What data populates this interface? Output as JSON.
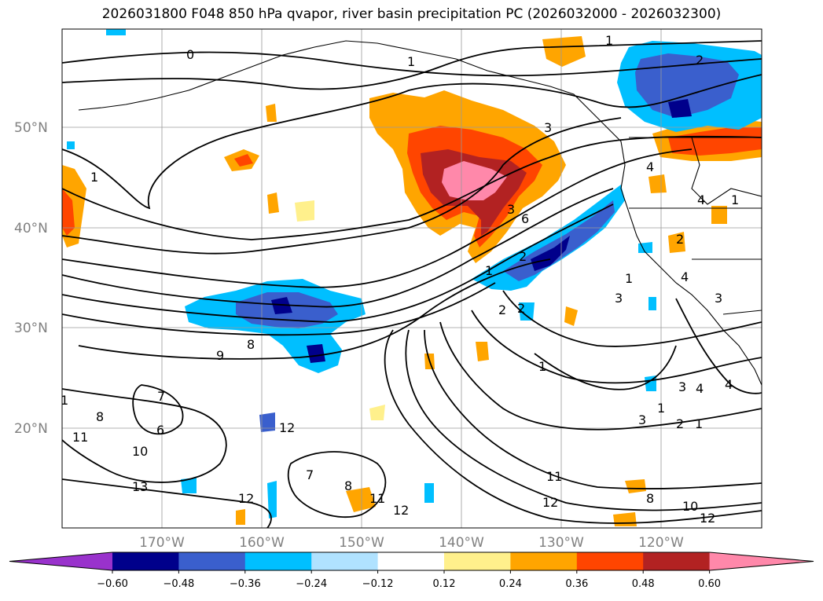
{
  "title": "2026031800 F048 850 hPa qvapor, river basin precipitation PC (2026032000 - 2026032300)",
  "latitude_labels": [
    "50°N",
    "40°N",
    "30°N",
    "20°N"
  ],
  "longitude_labels": [
    "170°W",
    "160°W",
    "150°W",
    "140°W",
    "130°W",
    "120°W"
  ],
  "colorbar": {
    "colors": [
      "#9932cc",
      "#00008b",
      "#3a5fcd",
      "#00bfff",
      "#b0e2ff",
      "#ffffff",
      "#fff08c",
      "#ffa500",
      "#ff4500",
      "#b22222",
      "#ff88aa"
    ],
    "tick_labels": [
      "−0.60",
      "−0.48",
      "−0.36",
      "−0.24",
      "−0.12",
      "0.12",
      "0.24",
      "0.36",
      "0.48",
      "0.60"
    ]
  },
  "contour_labels": [
    "0",
    "1",
    "1",
    "1",
    "2",
    "3",
    "4",
    "4",
    "1",
    "3",
    "6",
    "2",
    "2",
    "1",
    "1",
    "2",
    "3",
    "4",
    "3",
    "1",
    "1",
    "2",
    "9",
    "8",
    "7",
    "8",
    "6",
    "11",
    "10",
    "13",
    "12",
    "7",
    "8",
    "11",
    "12",
    "12",
    "11",
    "12",
    "8",
    "10",
    "12",
    "2",
    "3",
    "4",
    "3",
    "4",
    "1",
    "1"
  ],
  "map_features": {
    "contours": "850 hPa water vapor mixing ratio",
    "shading": "river basin precipitation PC",
    "grid": true,
    "coastlines": true,
    "political_boundaries": true
  }
}
